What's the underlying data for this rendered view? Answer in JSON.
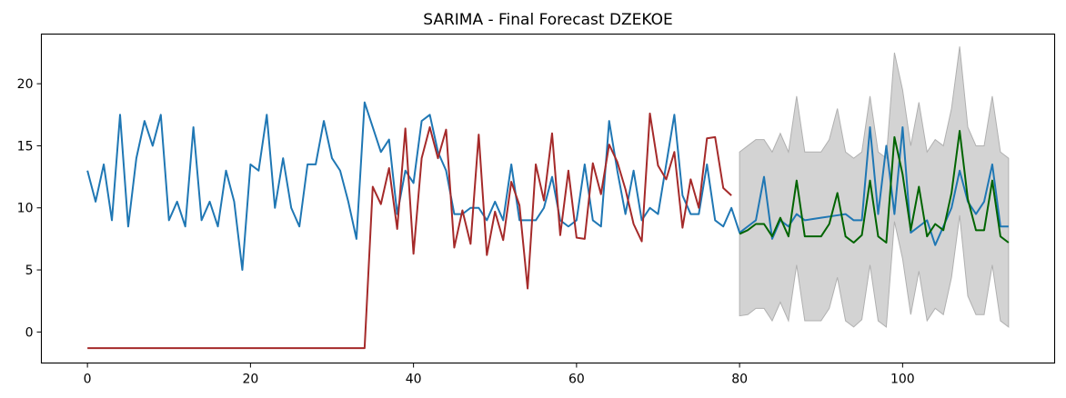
{
  "chart_data": {
    "type": "line",
    "title": "SARIMA - Final Forecast DZEKOE",
    "xlabel": "",
    "ylabel": "",
    "xlim": [
      -5.65,
      118.65
    ],
    "ylim": [
      -2.5,
      24.0
    ],
    "xticks": [
      0,
      20,
      40,
      60,
      80,
      100
    ],
    "yticks": [
      0,
      5,
      10,
      15,
      20
    ],
    "grid": false,
    "colors": {
      "actual": "#1f77b4",
      "fitted": "#a52a2a",
      "forecast": "#006400",
      "ci_fill": "#d3d3d3",
      "ci_edge": "#b0b0b0"
    },
    "series": [
      {
        "key": "actual",
        "x_start": 0,
        "values": [
          13,
          10.5,
          13.5,
          9,
          17.5,
          8.5,
          14,
          17,
          15,
          17.5,
          9,
          10.5,
          8.5,
          16.5,
          9,
          10.5,
          8.5,
          13,
          10.5,
          5,
          13.5,
          13,
          17.5,
          10,
          14,
          10,
          8.5,
          13.5,
          13.5,
          17,
          14,
          13,
          10.5,
          7.5,
          18.5,
          16.5,
          14.5,
          15.5,
          9.5,
          13,
          12,
          17,
          17.5,
          14.5,
          13,
          9.5,
          9.5,
          10,
          10,
          9,
          10.5,
          9,
          13.5,
          9,
          9,
          9,
          10,
          12.5,
          9,
          8.5,
          9,
          13.5,
          9,
          8.5,
          17,
          13,
          9.5,
          13,
          9,
          10,
          9.5,
          13.5,
          17.5,
          11,
          9.5,
          9.5,
          13.5,
          9,
          8.5,
          10,
          8,
          8.5,
          9,
          12.5,
          7.5,
          9,
          8.5,
          9.5,
          9,
          9.1,
          9.2,
          9.3,
          9.4,
          9.5,
          9,
          9,
          16.5,
          9.5,
          15,
          9.5,
          16.5,
          8,
          8.5,
          9,
          7,
          8.5,
          10,
          13,
          10.5,
          9.5,
          10.5,
          13.5,
          8.5,
          8.5
        ]
      },
      {
        "key": "fitted",
        "x_start": 0,
        "values": [
          -1.3,
          -1.3,
          -1.3,
          -1.3,
          -1.3,
          -1.3,
          -1.3,
          -1.3,
          -1.3,
          -1.3,
          -1.3,
          -1.3,
          -1.3,
          -1.3,
          -1.3,
          -1.3,
          -1.3,
          -1.3,
          -1.3,
          -1.3,
          -1.3,
          -1.3,
          -1.3,
          -1.3,
          -1.3,
          -1.3,
          -1.3,
          -1.3,
          -1.3,
          -1.3,
          -1.3,
          -1.3,
          -1.3,
          -1.3,
          -1.3,
          11.7,
          10.3,
          13.2,
          8.3,
          16.4,
          6.3,
          14,
          16.5,
          14,
          16.3,
          6.8,
          9.8,
          7.1,
          15.9,
          6.2,
          9.7,
          7.4,
          12.1,
          10.2,
          3.5,
          13.5,
          10.6,
          16,
          7.8,
          13,
          7.6,
          7.5,
          13.6,
          11.1,
          15.1,
          13.7,
          11.5,
          8.7,
          7.3,
          17.6,
          13.4,
          12.3,
          14.5,
          8.4,
          12.3,
          10,
          15.6,
          15.7,
          11.6,
          11
        ]
      },
      {
        "key": "forecast",
        "x_start": 80,
        "values": [
          7.9,
          8.2,
          8.7,
          8.7,
          7.7,
          9.2,
          7.7,
          12.2,
          7.7,
          7.7,
          7.7,
          8.7,
          11.2,
          7.7,
          7.2,
          7.8,
          12.2,
          7.7,
          7.2,
          15.7,
          12.7,
          8.2,
          11.7,
          7.7,
          8.7,
          8.2,
          11.2,
          16.2,
          10.7,
          8.2,
          8.2,
          12.2,
          7.7,
          7.2
        ]
      }
    ],
    "confidence_band": {
      "x_start": 80,
      "upper": [
        14.5,
        15,
        15.5,
        15.5,
        14.5,
        16,
        14.5,
        19,
        14.5,
        14.5,
        14.5,
        15.5,
        18,
        14.5,
        14,
        14.5,
        19,
        14.5,
        14,
        22.5,
        19.5,
        15,
        18.5,
        14.5,
        15.5,
        15,
        18,
        23,
        16.5,
        15,
        15,
        19,
        14.5,
        14
      ],
      "lower": [
        1.3,
        1.4,
        1.9,
        1.9,
        0.9,
        2.4,
        0.9,
        5.4,
        0.9,
        0.9,
        0.9,
        1.9,
        4.4,
        0.9,
        0.4,
        1.0,
        5.4,
        0.9,
        0.4,
        8.9,
        5.9,
        1.4,
        4.9,
        0.9,
        1.9,
        1.4,
        4.4,
        9.4,
        2.9,
        1.4,
        1.4,
        5.4,
        0.9,
        0.4
      ]
    }
  }
}
